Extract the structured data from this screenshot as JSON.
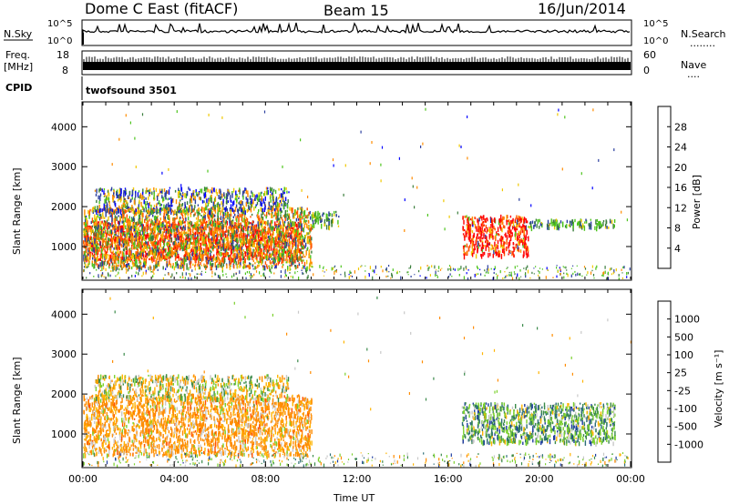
{
  "header": {
    "title": "Dome C East (fitACF)",
    "beam": "Beam 15",
    "date": "16/Jun/2014"
  },
  "top_panels": {
    "nsky_label": "N.Sky",
    "nsearch_label": "N.Search",
    "nsearch_dots": "........",
    "nsky_ticks": [
      "10^5",
      "10^0"
    ],
    "nsearch_ticks": [
      "10^5",
      "10^0"
    ],
    "freq_label_1": "Freq.",
    "freq_label_2": "[MHz]",
    "freq_ticks": [
      "18",
      "8"
    ],
    "nave_label": "Nave",
    "nave_dots": "....",
    "nave_ticks": [
      "60",
      "0"
    ],
    "cpid_label": "CPID",
    "cpid_value": "twofsound  3501"
  },
  "colorbars": {
    "power": {
      "label": "Power [dB]",
      "ticks": [
        "28",
        "24",
        "20",
        "16",
        "12",
        "8",
        "4"
      ],
      "colors": [
        "#ff0000",
        "#ff5500",
        "#ff8c00",
        "#f0c800",
        "#4cc41c",
        "#3b7e3c",
        "#2a3e9e",
        "#0000ff"
      ]
    },
    "velocity": {
      "label": "Velocity [m s⁻¹]",
      "ticks": [
        "1000",
        "500",
        "100",
        "25",
        "-25",
        "-100",
        "-500",
        "-1000"
      ],
      "colors": [
        "#1e3ca0",
        "#2d6e78",
        "#3a8a4a",
        "#7ad02c",
        "#c8c8c8",
        "#ffb400",
        "#ff8c00",
        "#ff5000",
        "#ff0000"
      ]
    }
  },
  "chart_data": [
    {
      "type": "heatmap",
      "title": "Power",
      "ylabel": "Slant Range [km]",
      "xlabel": "",
      "x_range": [
        "00:00",
        "24:00"
      ],
      "ylim": [
        180,
        4600
      ],
      "yticks": [
        "4000",
        "3000",
        "2000",
        "1000"
      ],
      "regions": [
        {
          "t0": 0.0,
          "t1": 9.6,
          "r0": 700,
          "r1": 1650,
          "level": "red"
        },
        {
          "t0": 0.0,
          "t1": 10.0,
          "r0": 500,
          "r1": 2000,
          "level": "orange"
        },
        {
          "t0": 0.5,
          "t1": 9.0,
          "r0": 1900,
          "r1": 2500,
          "level": "mixed"
        },
        {
          "t0": 10.0,
          "t1": 11.2,
          "r0": 1500,
          "r1": 1900,
          "level": "green"
        },
        {
          "t0": 16.6,
          "t1": 19.5,
          "r0": 800,
          "r1": 1800,
          "level": "red"
        },
        {
          "t0": 19.5,
          "t1": 23.3,
          "r0": 1500,
          "r1": 1700,
          "level": "green"
        }
      ]
    },
    {
      "type": "heatmap",
      "title": "Velocity",
      "ylabel": "Slant Range [km]",
      "xlabel": "Time UT",
      "x_range": [
        "00:00",
        "24:00"
      ],
      "xticks": [
        "00:00",
        "04:00",
        "08:00",
        "12:00",
        "16:00",
        "20:00",
        "00:00"
      ],
      "ylim": [
        180,
        4600
      ],
      "yticks": [
        "4000",
        "3000",
        "2000",
        "1000"
      ],
      "regions": [
        {
          "t0": 0.0,
          "t1": 10.0,
          "r0": 500,
          "r1": 2000,
          "level": "orange"
        },
        {
          "t0": 0.5,
          "t1": 9.0,
          "r0": 1900,
          "r1": 2500,
          "level": "mixed"
        },
        {
          "t0": 16.6,
          "t1": 23.3,
          "r0": 800,
          "r1": 1800,
          "level": "green"
        }
      ]
    }
  ]
}
